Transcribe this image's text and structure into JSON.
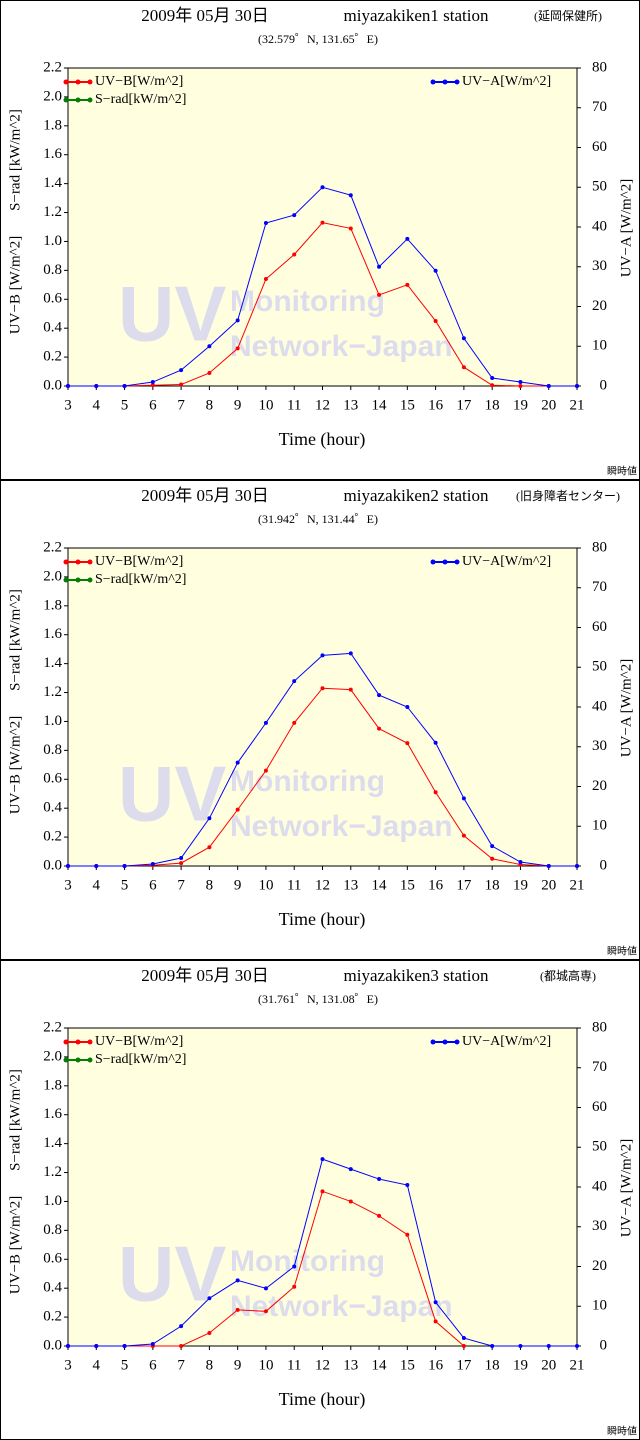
{
  "chart_data": [
    {
      "type": "line",
      "title": "2009年 05月 30日",
      "station": "miyazakiken1 station",
      "subtitle": "(延岡保健所)",
      "coordinates": "(32.579゜N, 131.65゜E)",
      "xlabel": "Time (hour)",
      "ylabel": "UV−B [W/m^2]",
      "ylabel2": "S−rad [kW/m^2]",
      "y2label": "UV−A [W/m^2]",
      "note": "瞬時値",
      "watermark": [
        "UV",
        "Monitoring",
        "Network−Japan"
      ],
      "x": [
        3,
        4,
        5,
        6,
        7,
        8,
        9,
        10,
        11,
        12,
        13,
        14,
        15,
        16,
        17,
        18,
        19,
        20,
        21
      ],
      "xlim": [
        3,
        21
      ],
      "xticks": [
        3,
        4,
        5,
        6,
        7,
        8,
        9,
        10,
        11,
        12,
        13,
        14,
        15,
        16,
        17,
        18,
        19,
        20,
        21
      ],
      "ylim": [
        0,
        2.2
      ],
      "yticks": [
        {
          "value": 0,
          "label": "0.0"
        },
        0.2,
        0.4,
        0.6,
        0.8,
        {
          "value": 1,
          "label": "1.0"
        },
        1.2,
        1.4,
        1.6,
        1.8,
        {
          "value": 2,
          "label": "2.0"
        },
        2.2
      ],
      "y2lim": [
        0,
        80
      ],
      "y2ticks": [
        0,
        10,
        20,
        30,
        40,
        50,
        60,
        70,
        80
      ],
      "series": [
        {
          "name": "UV−B[W/m^2]",
          "color": "#ff0000",
          "values": [
            0,
            0,
            0,
            0.005,
            0.01,
            0.09,
            0.26,
            0.74,
            0.91,
            1.13,
            1.09,
            0.63,
            0.7,
            0.45,
            0.13,
            0.005,
            0,
            0,
            0
          ]
        },
        {
          "name": "S−rad[kW/m^2]",
          "color": "#008000",
          "values": [
            null,
            null,
            null,
            null,
            null,
            null,
            null,
            null,
            null,
            null,
            null,
            null,
            null,
            null,
            null,
            null,
            null,
            null,
            null
          ]
        },
        {
          "name": "UV−A[W/m^2]",
          "color": "#0000ff",
          "axis": "y2",
          "values": [
            0,
            0,
            0,
            1,
            4,
            10,
            16.5,
            41,
            43,
            50,
            48,
            30,
            37,
            29,
            12,
            2,
            1,
            0,
            0
          ]
        }
      ]
    },
    {
      "type": "line",
      "title": "2009年 05月 30日",
      "station": "miyazakiken2 station",
      "subtitle": "(旧身障者センター)",
      "coordinates": "(31.942゜N, 131.44゜E)",
      "xlabel": "Time (hour)",
      "ylabel": "UV−B [W/m^2]",
      "ylabel2": "S−rad [kW/m^2]",
      "y2label": "UV−A [W/m^2]",
      "note": "瞬時値",
      "watermark": [
        "UV",
        "Monitoring",
        "Network−Japan"
      ],
      "x": [
        3,
        4,
        5,
        6,
        7,
        8,
        9,
        10,
        11,
        12,
        13,
        14,
        15,
        16,
        17,
        18,
        19,
        20,
        21
      ],
      "xlim": [
        3,
        21
      ],
      "xticks": [
        3,
        4,
        5,
        6,
        7,
        8,
        9,
        10,
        11,
        12,
        13,
        14,
        15,
        16,
        17,
        18,
        19,
        20,
        21
      ],
      "ylim": [
        0,
        2.2
      ],
      "yticks": [
        {
          "value": 0,
          "label": "0.0"
        },
        0.2,
        0.4,
        0.6,
        0.8,
        {
          "value": 1,
          "label": "1.0"
        },
        1.2,
        1.4,
        1.6,
        1.8,
        {
          "value": 2,
          "label": "2.0"
        },
        2.2
      ],
      "y2lim": [
        0,
        80
      ],
      "y2ticks": [
        0,
        10,
        20,
        30,
        40,
        50,
        60,
        70,
        80
      ],
      "series": [
        {
          "name": "UV−B[W/m^2]",
          "color": "#ff0000",
          "values": [
            0,
            0,
            0,
            0.005,
            0.02,
            0.13,
            0.39,
            0.66,
            0.99,
            1.23,
            1.22,
            0.95,
            0.85,
            0.51,
            0.21,
            0.05,
            0.01,
            0,
            0
          ]
        },
        {
          "name": "S−rad[kW/m^2]",
          "color": "#008000",
          "values": [
            null,
            null,
            null,
            null,
            null,
            null,
            null,
            null,
            null,
            null,
            null,
            null,
            null,
            null,
            null,
            null,
            null,
            null,
            null
          ]
        },
        {
          "name": "UV−A[W/m^2]",
          "color": "#0000ff",
          "axis": "y2",
          "values": [
            0,
            0,
            0,
            0.5,
            2,
            12,
            26,
            36,
            46.5,
            53,
            53.5,
            43,
            40,
            31,
            17,
            5,
            1,
            0,
            0
          ]
        }
      ]
    },
    {
      "type": "line",
      "title": "2009年 05月 30日",
      "station": "miyazakiken3 station",
      "subtitle": "(都城高専)",
      "coordinates": "(31.761゜N, 131.08゜E)",
      "xlabel": "Time (hour)",
      "ylabel": "UV−B [W/m^2]",
      "ylabel2": "S−rad [kW/m^2]",
      "y2label": "UV−A [W/m^2]",
      "note": "瞬時値",
      "watermark": [
        "UV",
        "Monitoring",
        "Network−Japan"
      ],
      "x": [
        3,
        4,
        5,
        6,
        7,
        8,
        9,
        10,
        11,
        12,
        13,
        14,
        15,
        16,
        17,
        18,
        19,
        20,
        21
      ],
      "xlim": [
        3,
        21
      ],
      "xticks": [
        3,
        4,
        5,
        6,
        7,
        8,
        9,
        10,
        11,
        12,
        13,
        14,
        15,
        16,
        17,
        18,
        19,
        20,
        21
      ],
      "ylim": [
        0,
        2.2
      ],
      "yticks": [
        {
          "value": 0,
          "label": "0.0"
        },
        0.2,
        0.4,
        0.6,
        0.8,
        {
          "value": 1,
          "label": "1.0"
        },
        1.2,
        1.4,
        1.6,
        1.8,
        {
          "value": 2,
          "label": "2.0"
        },
        2.2
      ],
      "y2lim": [
        0,
        80
      ],
      "y2ticks": [
        0,
        10,
        20,
        30,
        40,
        50,
        60,
        70,
        80
      ],
      "series": [
        {
          "name": "UV−B[W/m^2]",
          "color": "#ff0000",
          "values": [
            0,
            0,
            0,
            0,
            0,
            0.09,
            0.25,
            0.24,
            0.41,
            1.07,
            1.0,
            0.9,
            0.77,
            0.17,
            0,
            null,
            null,
            null,
            null
          ]
        },
        {
          "name": "S−rad[kW/m^2]",
          "color": "#008000",
          "values": [
            null,
            null,
            null,
            null,
            null,
            null,
            null,
            null,
            null,
            null,
            null,
            null,
            null,
            null,
            null,
            null,
            null,
            null,
            null
          ]
        },
        {
          "name": "UV−A[W/m^2]",
          "color": "#0000ff",
          "axis": "y2",
          "values": [
            0,
            0,
            0,
            0.5,
            5,
            12,
            16.5,
            14.5,
            20,
            47,
            44.5,
            42,
            40.5,
            11,
            2,
            0,
            0,
            0,
            0
          ]
        }
      ]
    }
  ]
}
